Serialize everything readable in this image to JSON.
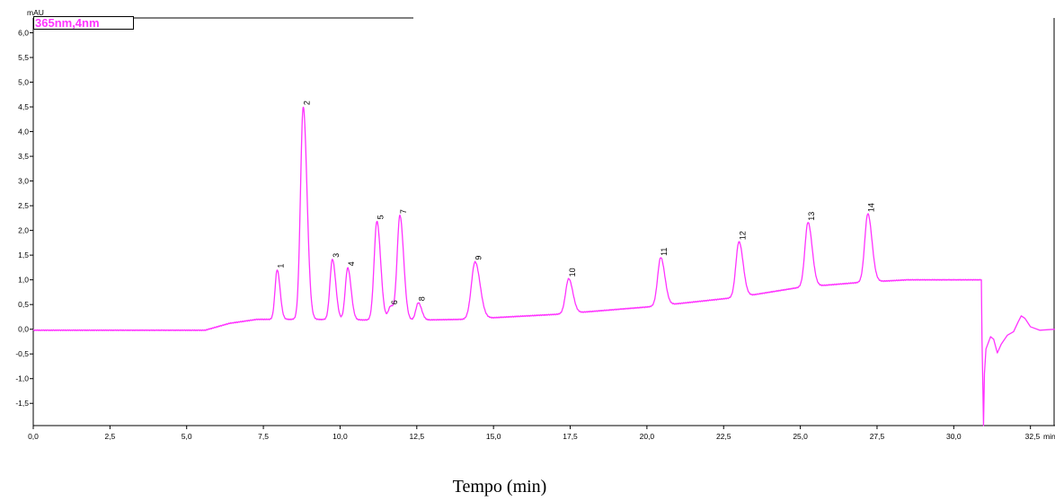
{
  "chart_data": {
    "type": "line",
    "ylabel": "mAU",
    "x_unit": "min",
    "xlabel": "Tempo (min)",
    "xlim": [
      0,
      33.3
    ],
    "ylim": [
      -1.95,
      6.3
    ],
    "x_ticks": [
      "0,0",
      "2,5",
      "5,0",
      "7,5",
      "10,0",
      "12,5",
      "15,0",
      "17,5",
      "20,0",
      "22,5",
      "25,0",
      "27,5",
      "30,0",
      "32,5"
    ],
    "y_ticks": [
      "6,0",
      "5,5",
      "5,0",
      "4,5",
      "4,0",
      "3,5",
      "3,0",
      "2,5",
      "2,0",
      "1,5",
      "1,0",
      "0,5",
      "0,0",
      "-0,5",
      "-1,0",
      "-1,5"
    ],
    "legend": "365nm,4nm",
    "grid": false,
    "colors": {
      "trace": "#ff33ff",
      "legend_text": "#ff33ff"
    },
    "baseline": [
      {
        "x": 0.0,
        "y": -0.02
      },
      {
        "x": 5.6,
        "y": -0.02
      },
      {
        "x": 6.4,
        "y": 0.12
      },
      {
        "x": 7.3,
        "y": 0.2
      },
      {
        "x": 9.0,
        "y": 0.2
      },
      {
        "x": 12.0,
        "y": 0.18
      },
      {
        "x": 14.0,
        "y": 0.2
      },
      {
        "x": 17.0,
        "y": 0.3
      },
      {
        "x": 20.0,
        "y": 0.45
      },
      {
        "x": 23.0,
        "y": 0.65
      },
      {
        "x": 25.0,
        "y": 0.85
      },
      {
        "x": 27.0,
        "y": 0.95
      },
      {
        "x": 28.5,
        "y": 1.0
      },
      {
        "x": 30.9,
        "y": 1.0
      }
    ],
    "peaks": [
      {
        "label": "1",
        "rt": 7.95,
        "height": 1.0,
        "width": 0.07
      },
      {
        "label": "2",
        "rt": 8.8,
        "height": 4.3,
        "width": 0.09
      },
      {
        "label": "3",
        "rt": 9.75,
        "height": 1.22,
        "width": 0.08
      },
      {
        "label": "4",
        "rt": 10.25,
        "height": 1.05,
        "width": 0.08
      },
      {
        "label": "5",
        "rt": 11.2,
        "height": 2.0,
        "width": 0.09
      },
      {
        "label": "6",
        "rt": 11.65,
        "height": 0.28,
        "width": 0.08
      },
      {
        "label": "7",
        "rt": 11.95,
        "height": 2.12,
        "width": 0.09
      },
      {
        "label": "8",
        "rt": 12.55,
        "height": 0.35,
        "width": 0.08
      },
      {
        "label": "9",
        "rt": 14.4,
        "height": 1.15,
        "width": 0.12
      },
      {
        "label": "10",
        "rt": 17.45,
        "height": 0.7,
        "width": 0.1
      },
      {
        "label": "11",
        "rt": 20.45,
        "height": 0.97,
        "width": 0.1
      },
      {
        "label": "12",
        "rt": 23.0,
        "height": 1.12,
        "width": 0.1
      },
      {
        "label": "13",
        "rt": 25.25,
        "height": 1.3,
        "width": 0.1
      },
      {
        "label": "14",
        "rt": 27.2,
        "height": 1.38,
        "width": 0.1
      }
    ],
    "post_run": [
      {
        "x": 30.9,
        "y": 1.0
      },
      {
        "x": 30.92,
        "y": -0.2
      },
      {
        "x": 30.95,
        "y": -1.2
      },
      {
        "x": 30.97,
        "y": -1.95
      },
      {
        "x": 31.0,
        "y": -0.9
      },
      {
        "x": 31.05,
        "y": -0.4
      },
      {
        "x": 31.2,
        "y": -0.15
      },
      {
        "x": 31.3,
        "y": -0.2
      },
      {
        "x": 31.42,
        "y": -0.48
      },
      {
        "x": 31.55,
        "y": -0.3
      },
      {
        "x": 31.75,
        "y": -0.12
      },
      {
        "x": 31.95,
        "y": -0.05
      },
      {
        "x": 32.1,
        "y": 0.15
      },
      {
        "x": 32.2,
        "y": 0.27
      },
      {
        "x": 32.32,
        "y": 0.22
      },
      {
        "x": 32.5,
        "y": 0.05
      },
      {
        "x": 32.8,
        "y": -0.02
      },
      {
        "x": 33.3,
        "y": 0.0
      }
    ]
  }
}
